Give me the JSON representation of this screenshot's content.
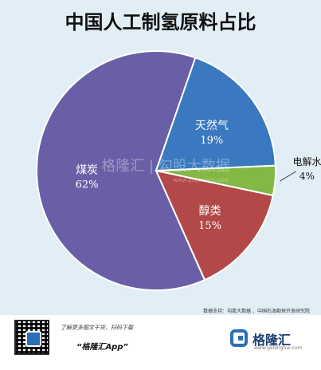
{
  "chart_data": {
    "type": "pie",
    "title": "中国人工制氢原料占比",
    "slices": [
      {
        "label": "煤炭",
        "value": 62,
        "display": "62%",
        "color": "#6a5fa6",
        "label_color": "#ffffff"
      },
      {
        "label": "天然气",
        "value": 19,
        "display": "19%",
        "color": "#3a79bf",
        "label_color": "#ffffff"
      },
      {
        "label": "电解水",
        "value": 4,
        "display": "4%",
        "color": "#83b845",
        "label_color": "#111111"
      },
      {
        "label": "醇类",
        "value": 15,
        "display": "15%",
        "color": "#b34848",
        "label_color": "#ffffff"
      }
    ]
  },
  "watermark": {
    "text": "格隆汇 | 勾股大数据",
    "url": "www.gogudata.com"
  },
  "source_note": "数据支持：勾股大数据 、中国石油勘探开发研究院",
  "footer": {
    "promo_line1": "了解更多图文干货，扫码下载",
    "promo_line2": "“格隆汇App”",
    "brand_name": "格隆汇",
    "brand_url": "www.gelonghui.com"
  }
}
